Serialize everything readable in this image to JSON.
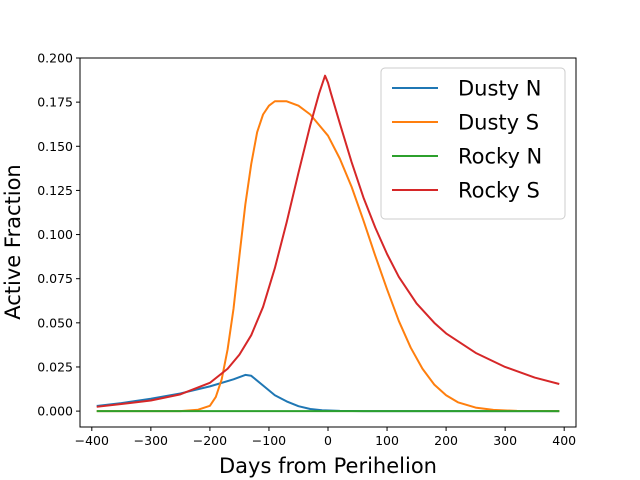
{
  "chart_data": {
    "type": "line",
    "title": "",
    "xlabel": "Days from Perihelion",
    "ylabel": "Active Fraction",
    "xlim": [
      -420,
      420
    ],
    "ylim": [
      -0.009,
      0.2
    ],
    "xticks": [
      -400,
      -300,
      -200,
      -100,
      0,
      100,
      200,
      300,
      400
    ],
    "xtick_labels": [
      "−400",
      "−300",
      "−200",
      "−100",
      "0",
      "100",
      "200",
      "300",
      "400"
    ],
    "yticks": [
      0.0,
      0.025,
      0.05,
      0.075,
      0.1,
      0.125,
      0.15,
      0.175,
      0.2
    ],
    "ytick_labels": [
      "0.000",
      "0.025",
      "0.050",
      "0.075",
      "0.100",
      "0.125",
      "0.150",
      "0.175",
      "0.200"
    ],
    "grid": false,
    "legend_position": "top-right",
    "series": [
      {
        "name": "Dusty N",
        "color": "#1f77b4",
        "points": [
          [
            -390,
            0.003
          ],
          [
            -350,
            0.0045
          ],
          [
            -300,
            0.007
          ],
          [
            -250,
            0.01
          ],
          [
            -200,
            0.014
          ],
          [
            -160,
            0.018
          ],
          [
            -140,
            0.0205
          ],
          [
            -130,
            0.02
          ],
          [
            -110,
            0.0145
          ],
          [
            -90,
            0.009
          ],
          [
            -70,
            0.0055
          ],
          [
            -50,
            0.0028
          ],
          [
            -30,
            0.0012
          ],
          [
            -10,
            0.0005
          ],
          [
            20,
            0.0001
          ],
          [
            60,
            0.0
          ],
          [
            100,
            0.0
          ],
          [
            200,
            0.0
          ],
          [
            300,
            0.0
          ],
          [
            390,
            0.0
          ]
        ]
      },
      {
        "name": "Dusty S",
        "color": "#ff7f0e",
        "points": [
          [
            -390,
            0.0
          ],
          [
            -300,
            0.0
          ],
          [
            -250,
            0.0
          ],
          [
            -220,
            0.0008
          ],
          [
            -200,
            0.003
          ],
          [
            -190,
            0.008
          ],
          [
            -180,
            0.018
          ],
          [
            -170,
            0.035
          ],
          [
            -160,
            0.058
          ],
          [
            -150,
            0.088
          ],
          [
            -140,
            0.117
          ],
          [
            -130,
            0.14
          ],
          [
            -120,
            0.158
          ],
          [
            -110,
            0.168
          ],
          [
            -100,
            0.173
          ],
          [
            -90,
            0.1755
          ],
          [
            -70,
            0.1755
          ],
          [
            -50,
            0.173
          ],
          [
            -30,
            0.168
          ],
          [
            -10,
            0.16
          ],
          [
            0,
            0.156
          ],
          [
            20,
            0.143
          ],
          [
            40,
            0.127
          ],
          [
            60,
            0.108
          ],
          [
            80,
            0.088
          ],
          [
            100,
            0.069
          ],
          [
            120,
            0.051
          ],
          [
            140,
            0.036
          ],
          [
            160,
            0.024
          ],
          [
            180,
            0.015
          ],
          [
            200,
            0.009
          ],
          [
            220,
            0.005
          ],
          [
            250,
            0.002
          ],
          [
            280,
            0.0007
          ],
          [
            320,
            0.0001
          ],
          [
            390,
            0.0
          ]
        ]
      },
      {
        "name": "Rocky N",
        "color": "#2ca02c",
        "points": [
          [
            -390,
            0.0
          ],
          [
            -200,
            0.0
          ],
          [
            0,
            0.0
          ],
          [
            200,
            0.0
          ],
          [
            390,
            0.0
          ]
        ]
      },
      {
        "name": "Rocky S",
        "color": "#d62728",
        "points": [
          [
            -390,
            0.0025
          ],
          [
            -350,
            0.004
          ],
          [
            -300,
            0.006
          ],
          [
            -250,
            0.0095
          ],
          [
            -200,
            0.016
          ],
          [
            -170,
            0.024
          ],
          [
            -150,
            0.032
          ],
          [
            -130,
            0.043
          ],
          [
            -110,
            0.059
          ],
          [
            -90,
            0.081
          ],
          [
            -70,
            0.107
          ],
          [
            -50,
            0.135
          ],
          [
            -30,
            0.162
          ],
          [
            -15,
            0.18
          ],
          [
            -5,
            0.19
          ],
          [
            0,
            0.186
          ],
          [
            5,
            0.18
          ],
          [
            20,
            0.163
          ],
          [
            40,
            0.141
          ],
          [
            60,
            0.121
          ],
          [
            80,
            0.104
          ],
          [
            100,
            0.089
          ],
          [
            120,
            0.076
          ],
          [
            150,
            0.061
          ],
          [
            180,
            0.05
          ],
          [
            200,
            0.044
          ],
          [
            250,
            0.033
          ],
          [
            300,
            0.025
          ],
          [
            350,
            0.019
          ],
          [
            390,
            0.0155
          ]
        ]
      }
    ]
  }
}
